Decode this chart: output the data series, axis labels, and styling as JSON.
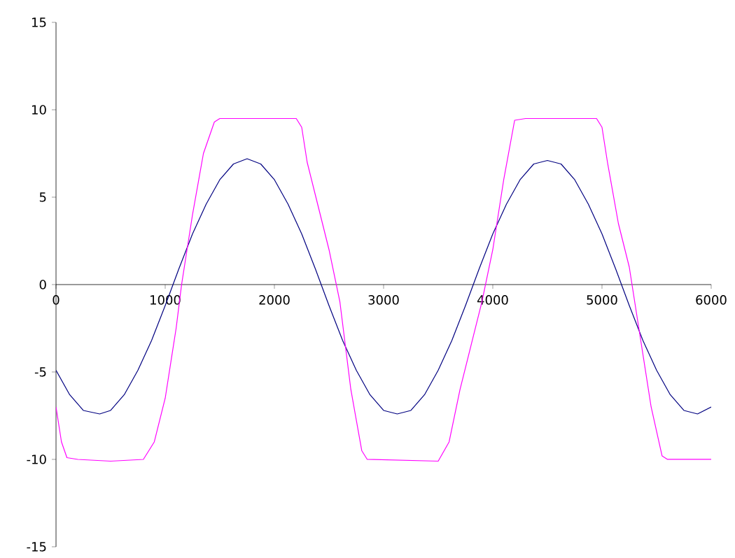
{
  "chart_data": {
    "type": "line",
    "xlim": [
      0,
      6000
    ],
    "ylim": [
      -15,
      15
    ],
    "xticks": [
      0,
      1000,
      2000,
      3000,
      4000,
      5000,
      6000
    ],
    "yticks": [
      -15,
      -10,
      -5,
      0,
      5,
      10,
      15
    ],
    "grid": false,
    "marker": "none",
    "line_style": "solid",
    "series": [
      {
        "color": "#000080",
        "x": [
          0,
          125,
          250,
          400,
          500,
          625,
          750,
          875,
          1000,
          1125,
          1250,
          1375,
          1500,
          1625,
          1750,
          1875,
          2000,
          2125,
          2250,
          2375,
          2500,
          2625,
          2750,
          2875,
          3000,
          3125,
          3250,
          3375,
          3500,
          3625,
          3750,
          3875,
          4000,
          4125,
          4250,
          4375,
          4500,
          4625,
          4750,
          4875,
          5000,
          5125,
          5250,
          5375,
          5500,
          5625,
          5750,
          5875,
          6000
        ],
        "values": [
          -4.9,
          -6.3,
          -7.2,
          -7.4,
          -7.2,
          -6.3,
          -4.9,
          -3.2,
          -1.2,
          0.9,
          2.9,
          4.6,
          6.0,
          6.9,
          7.2,
          6.9,
          6.0,
          4.6,
          2.9,
          0.9,
          -1.2,
          -3.2,
          -4.9,
          -6.3,
          -7.2,
          -7.4,
          -7.2,
          -6.3,
          -4.9,
          -3.2,
          -1.2,
          0.9,
          2.9,
          4.6,
          6.0,
          6.9,
          7.1,
          6.9,
          6.0,
          4.6,
          2.9,
          0.9,
          -1.2,
          -3.2,
          -4.9,
          -6.3,
          -7.2,
          -7.4,
          -7.0
        ]
      },
      {
        "color": "#ff00ff",
        "x": [
          0,
          50,
          100,
          200,
          500,
          800,
          900,
          1000,
          1100,
          1150,
          1250,
          1350,
          1450,
          1500,
          2200,
          2250,
          2300,
          2400,
          2500,
          2600,
          2700,
          2800,
          2850,
          3500,
          3600,
          3700,
          3800,
          3900,
          4000,
          4100,
          4200,
          4300,
          4950,
          5000,
          5050,
          5150,
          5250,
          5350,
          5450,
          5550,
          5600,
          6000
        ],
        "values": [
          -7,
          -9,
          -9.9,
          -10,
          -10.1,
          -10,
          -9,
          -6.5,
          -2.5,
          0,
          4,
          7.5,
          9.3,
          9.5,
          9.5,
          9,
          7,
          4.5,
          2,
          -1,
          -6,
          -9.5,
          -10,
          -10.1,
          -9,
          -6,
          -3.5,
          -1,
          2,
          6,
          9.4,
          9.5,
          9.5,
          9,
          7,
          3.5,
          1,
          -3,
          -7,
          -9.8,
          -10,
          -10
        ]
      }
    ]
  }
}
